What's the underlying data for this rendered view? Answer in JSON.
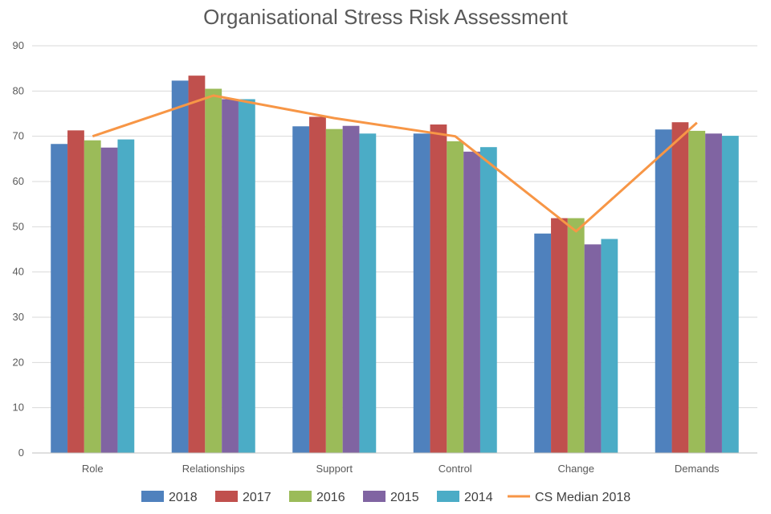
{
  "chart_data": {
    "type": "bar",
    "title": "Organisational Stress Risk Assessment",
    "xlabel": "",
    "ylabel": "",
    "ylim": [
      0,
      90
    ],
    "yticks": [
      0,
      10,
      20,
      30,
      40,
      50,
      60,
      70,
      80,
      90
    ],
    "grid": true,
    "legend_position": "bottom",
    "categories": [
      "Role",
      "Relationships",
      "Support",
      "Control",
      "Change",
      "Demands"
    ],
    "series": [
      {
        "name": "2018",
        "color": "#4f81bd",
        "values": [
          68.3,
          82.3,
          72.2,
          70.6,
          48.5,
          71.5
        ]
      },
      {
        "name": "2017",
        "color": "#c0504d",
        "values": [
          71.3,
          83.4,
          74.3,
          72.6,
          51.9,
          73.1
        ]
      },
      {
        "name": "2016",
        "color": "#9bbb59",
        "values": [
          69.1,
          80.5,
          71.6,
          68.9,
          51.9,
          71.2
        ]
      },
      {
        "name": "2015",
        "color": "#8064a2",
        "values": [
          67.5,
          78.2,
          72.3,
          66.6,
          46.1,
          70.6
        ]
      },
      {
        "name": "2014",
        "color": "#4bacc6",
        "values": [
          69.3,
          78.2,
          70.6,
          67.6,
          47.3,
          70.1
        ]
      }
    ],
    "line_series": {
      "name": "CS Median 2018",
      "color": "#f79646",
      "values": [
        70,
        79,
        74,
        70,
        49,
        73
      ]
    }
  }
}
